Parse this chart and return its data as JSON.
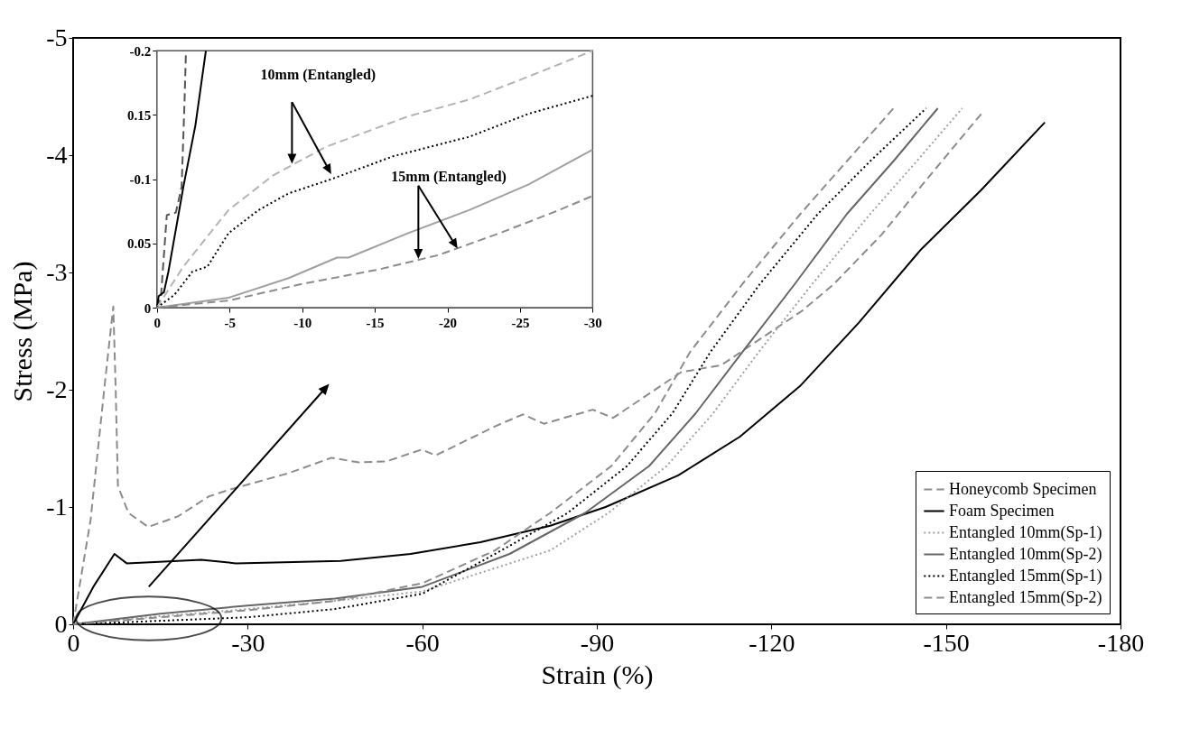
{
  "chart_data": [
    {
      "type": "line",
      "xlabel": "Strain (%)",
      "ylabel": "Stress (MPa)",
      "xlim": [
        0,
        -180
      ],
      "ylim": [
        0,
        -5
      ],
      "xticks": [
        0,
        -30,
        -60,
        -90,
        -120,
        -150,
        -180
      ],
      "yticks": [
        0,
        -1,
        -2,
        -3,
        -4,
        -5
      ],
      "legend": "bottom right",
      "grid": false,
      "series": [
        {
          "name": "Honeycomb Specimen",
          "color": "#8c8c8c",
          "line_style": "dashed",
          "x": [
            0,
            -3,
            -5.4,
            -6.9,
            -7.3,
            -7.7,
            -9.5,
            -12.9,
            -18,
            -23.3,
            -27,
            -37.1,
            -44.4,
            -49.1,
            -53.9,
            -59.9,
            -62.3,
            -72.6,
            -77.3,
            -80.9,
            -89.3,
            -92.8,
            -104.5,
            -111.4,
            -118.3,
            -125.2,
            -130.7,
            -138.9,
            -145.8,
            -156.2
          ],
          "values": [
            0,
            -0.89,
            -2.03,
            -2.71,
            -2.03,
            -1.18,
            -0.95,
            -0.83,
            -0.92,
            -1.09,
            -1.15,
            -1.29,
            -1.42,
            -1.38,
            -1.39,
            -1.49,
            -1.44,
            -1.69,
            -1.79,
            -1.71,
            -1.83,
            -1.76,
            -2.15,
            -2.21,
            -2.44,
            -2.67,
            -2.9,
            -3.32,
            -3.74,
            -4.36
          ]
        },
        {
          "name": "Foam Specimen",
          "color": "#000000",
          "line_style": "solid",
          "x": [
            0,
            -3.6,
            -7.1,
            -9.2,
            -22,
            -28,
            -46,
            -58,
            -70,
            -82,
            -91.5,
            -104,
            -114.6,
            -124.9,
            -135,
            -145.6,
            -156,
            -167
          ],
          "values": [
            0,
            -0.33,
            -0.6,
            -0.52,
            -0.55,
            -0.52,
            -0.54,
            -0.6,
            -0.7,
            -0.84,
            -1.0,
            -1.27,
            -1.6,
            -2.03,
            -2.57,
            -3.19,
            -3.7,
            -4.28
          ]
        },
        {
          "name": "Entangled 10mm(Sp-1)",
          "color": "#a0a0a0",
          "line_style": "dotted",
          "x": [
            0,
            -15,
            -30,
            -45,
            -60,
            -82,
            -92,
            -102,
            -110,
            -117.8,
            -127,
            -137,
            -145,
            -152.8
          ],
          "values": [
            0,
            -0.07,
            -0.13,
            -0.2,
            -0.28,
            -0.63,
            -0.95,
            -1.35,
            -1.8,
            -2.32,
            -2.9,
            -3.5,
            -3.95,
            -4.4
          ]
        },
        {
          "name": "Entangled 10mm(Sp-2)",
          "color": "#666666",
          "line_style": "solid",
          "x": [
            0,
            -15,
            -30,
            -45,
            -60,
            -75,
            -88,
            -99,
            -107,
            -115,
            -124,
            -133,
            -141,
            -148.6
          ],
          "values": [
            0,
            -0.09,
            -0.16,
            -0.22,
            -0.32,
            -0.6,
            -0.95,
            -1.35,
            -1.8,
            -2.32,
            -2.9,
            -3.5,
            -3.95,
            -4.4
          ]
        },
        {
          "name": "Entangled 15mm(Sp-1)",
          "color": "#000000",
          "line_style": "dotted",
          "x": [
            0,
            -15,
            -30,
            -45,
            -60,
            -73.6,
            -85,
            -95.2,
            -103,
            -109.5,
            -118,
            -128,
            -137,
            -146.6
          ],
          "values": [
            0,
            -0.03,
            -0.06,
            -0.13,
            -0.26,
            -0.63,
            -0.95,
            -1.35,
            -1.8,
            -2.32,
            -2.9,
            -3.5,
            -3.95,
            -4.4
          ]
        },
        {
          "name": "Entangled 15mm(Sp-2)",
          "color": "#8c8c8c",
          "line_style": "dashed",
          "x": [
            0,
            -15,
            -30,
            -45,
            -60,
            -72.5,
            -82,
            -92.5,
            -100,
            -106,
            -115,
            -125,
            -133,
            -141
          ],
          "values": [
            0,
            -0.06,
            -0.12,
            -0.2,
            -0.35,
            -0.63,
            -0.95,
            -1.35,
            -1.8,
            -2.32,
            -2.9,
            -3.5,
            -3.95,
            -4.4
          ]
        }
      ]
    },
    {
      "type": "line",
      "xlim": [
        0,
        -30
      ],
      "ylim": [
        0,
        -0.2
      ],
      "xticks": [
        0,
        -5,
        -10,
        -15,
        -20,
        -25,
        -30
      ],
      "yticks": [
        0,
        {
          "value": -0.05,
          "label": "0.05"
        },
        -0.1,
        {
          "value": -0.15,
          "label": "0.15"
        },
        -0.2
      ],
      "grid": false,
      "annotations": [
        "10mm (Entangled)",
        "15mm (Entangled)"
      ],
      "series": [
        {
          "color": "#555555",
          "line_style": "dashed",
          "x": [
            0,
            -0.27,
            -0.68,
            -1.3,
            -1.7,
            -1.9,
            -2.0
          ],
          "values": [
            0,
            -0.0077,
            -0.072,
            -0.074,
            -0.094,
            -0.16,
            -0.2
          ]
        },
        {
          "color": "#000000",
          "line_style": "solid",
          "x": [
            0,
            -0.12,
            -0.48,
            -0.79,
            -1.82,
            -2.65,
            -3.37
          ],
          "values": [
            0,
            -0.009,
            -0.012,
            -0.028,
            -0.094,
            -0.142,
            -0.2
          ]
        },
        {
          "color": "#b4b4b4",
          "line_style": "dashed",
          "x": [
            0,
            -1.82,
            -4.93,
            -8.0,
            -11.6,
            -17.3,
            -21.5,
            -25.6,
            -30
          ],
          "values": [
            0,
            -0.032,
            -0.076,
            -0.103,
            -0.125,
            -0.149,
            -0.162,
            -0.18,
            -0.2
          ]
        },
        {
          "color": "#000000",
          "line_style": "dotted",
          "x": [
            0,
            -1.2,
            -2.44,
            -3.48,
            -4.93,
            -7.0,
            -9.07,
            -12,
            -16.3,
            -21.5,
            -25.6,
            -30
          ],
          "values": [
            0,
            -0.0099,
            -0.028,
            -0.032,
            -0.058,
            -0.076,
            -0.089,
            -0.1,
            -0.118,
            -0.133,
            -0.151,
            -0.165
          ]
        },
        {
          "color": "#a0a0a0",
          "line_style": "solid",
          "x": [
            0,
            -4.93,
            -9.07,
            -12.4,
            -13.2,
            -17.3,
            -21.5,
            -25.6,
            -30
          ],
          "values": [
            0,
            -0.0077,
            -0.023,
            -0.039,
            -0.039,
            -0.058,
            -0.076,
            -0.096,
            -0.123
          ]
        },
        {
          "color": "#8c8c8c",
          "line_style": "dashed",
          "x": [
            0,
            -4.93,
            -10.1,
            -15.3,
            -19.4,
            -23.6,
            -27.7,
            -30
          ],
          "values": [
            0,
            -0.0055,
            -0.0187,
            -0.0298,
            -0.041,
            -0.058,
            -0.076,
            -0.087
          ]
        }
      ]
    }
  ]
}
